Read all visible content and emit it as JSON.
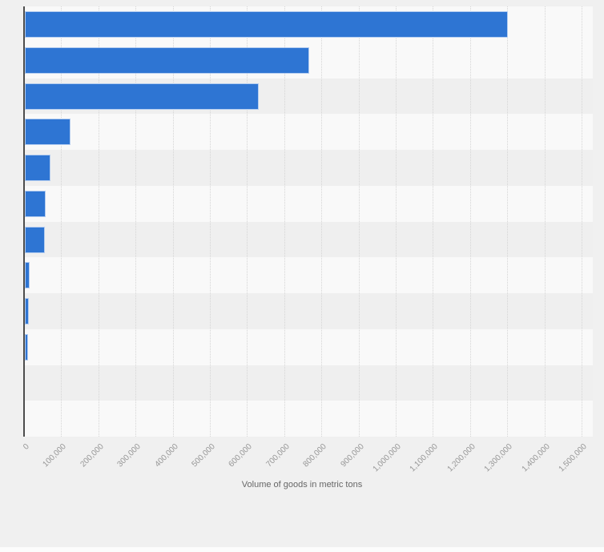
{
  "chart_data": {
    "type": "bar",
    "orientation": "horizontal",
    "title": "",
    "xlabel": "Volume of goods in metric tons",
    "ylabel": "",
    "xlim": [
      0,
      1500000
    ],
    "tick_interval": 100000,
    "tick_labels": [
      "0",
      "100,000",
      "200,000",
      "300,000",
      "400,000",
      "500,000",
      "600,000",
      "700,000",
      "800,000",
      "900,000",
      "1,000,000",
      "1,100,000",
      "1,200,000",
      "1,300,000",
      "1,400,000",
      "1,500,000"
    ],
    "categories": [
      "",
      "",
      "",
      "",
      "",
      "",
      "",
      "",
      "",
      "",
      "",
      ""
    ],
    "category_labels_visible": false,
    "series": [
      {
        "name": "Volume of goods",
        "values": [
          1300000,
          765000,
          630000,
          122000,
          70000,
          56000,
          53000,
          13000,
          11000,
          8000,
          0,
          0
        ]
      }
    ],
    "grid": "vertical-dotted",
    "legend": "none",
    "colors": {
      "bar_fill": "#2e75d3",
      "bar_border": "#b4cdf0",
      "background": "#f0f0f0",
      "row_stripe_dark": "#efefef",
      "row_stripe_light": "#f9f9f9",
      "axis_line": "#4d4d4d",
      "gridline": "#d5d5d5",
      "tick_label": "#979797",
      "axis_title": "#666666"
    }
  }
}
